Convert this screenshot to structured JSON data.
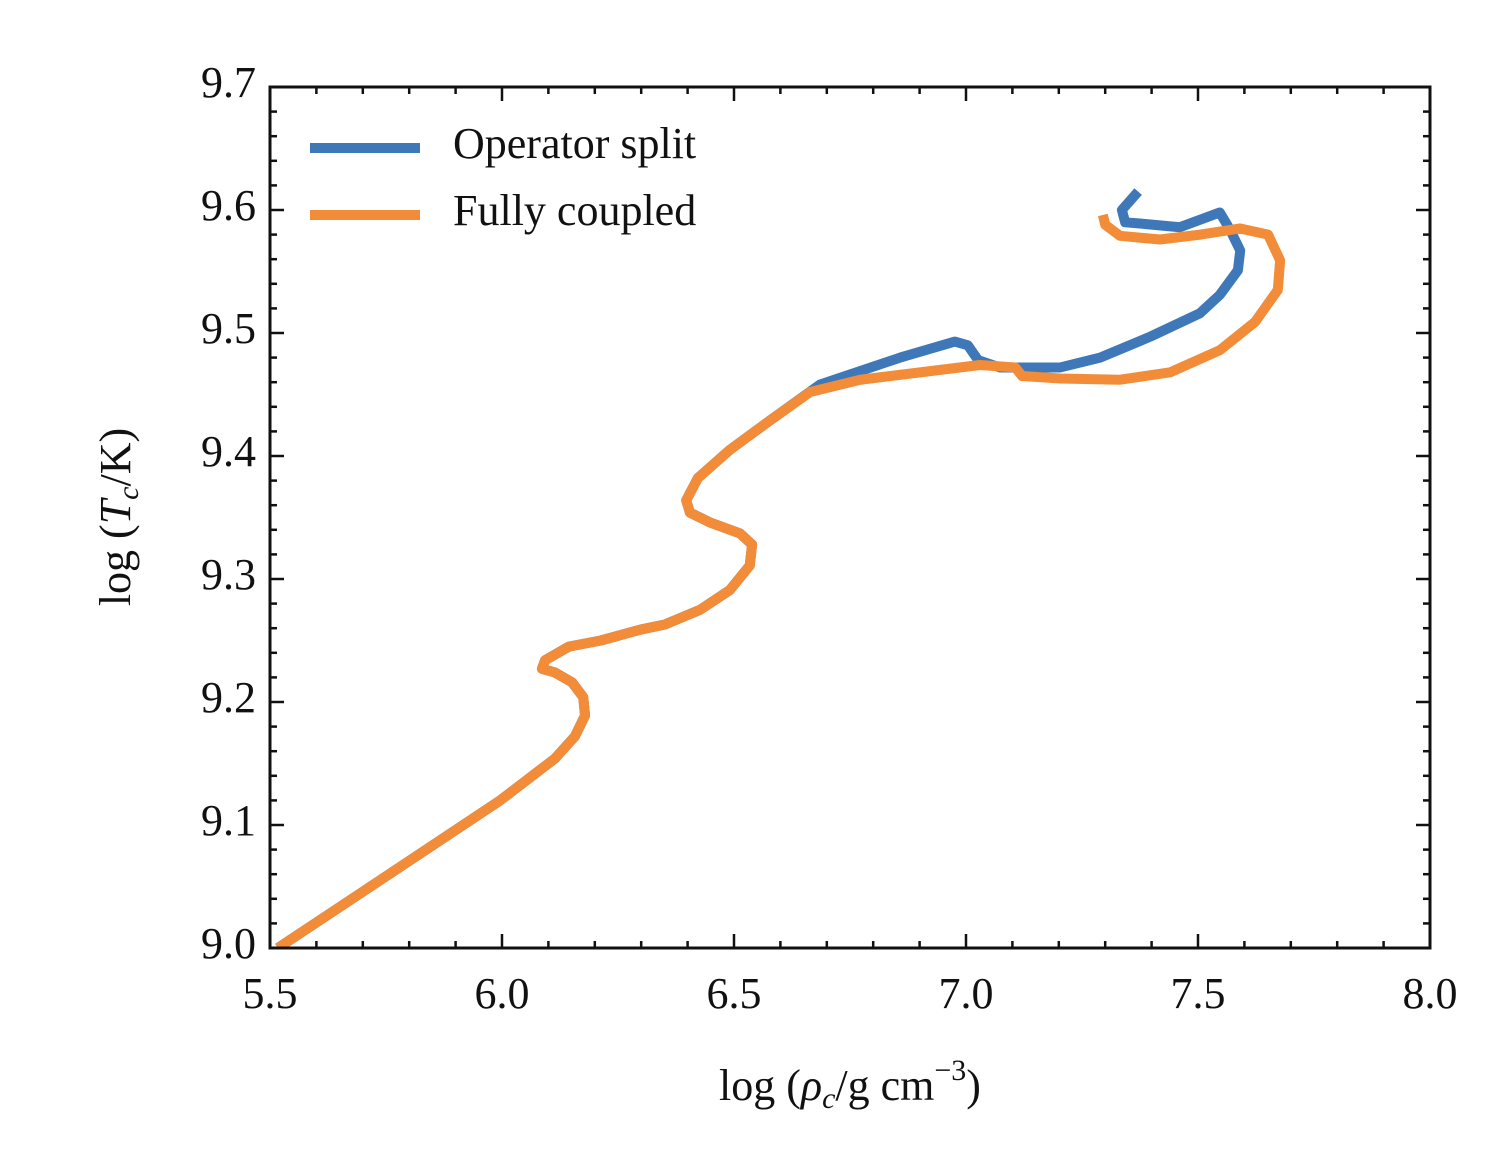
{
  "chart_data": {
    "type": "line",
    "xlabel": [
      "log (",
      "ρ",
      "c",
      "/g cm",
      "−3",
      ")"
    ],
    "ylabel": [
      "log (",
      "T",
      "c",
      "/K)"
    ],
    "xlim": [
      5.5,
      8.0
    ],
    "ylim": [
      9.0,
      9.7
    ],
    "xticks": [
      5.5,
      {
        "value": 6,
        "label": "6.0"
      },
      6.5,
      {
        "value": 7,
        "label": "7.0"
      },
      7.5,
      {
        "value": 8,
        "label": "8.0"
      }
    ],
    "yticks": [
      {
        "value": 9,
        "label": "9.0"
      },
      9.1,
      9.2,
      9.3,
      9.4,
      9.5,
      9.6,
      9.7
    ],
    "xminorticks": [
      5.6,
      5.7,
      5.8,
      5.9,
      6.1,
      6.2,
      6.3,
      6.4,
      6.6,
      6.7,
      6.8,
      6.9,
      7.1,
      7.2,
      7.3,
      7.4,
      7.6,
      7.7,
      7.8,
      7.9
    ],
    "yminorticks": [
      9.02,
      9.04,
      9.06,
      9.08,
      9.12,
      9.14,
      9.16,
      9.18,
      9.22,
      9.24,
      9.26,
      9.28,
      9.32,
      9.34,
      9.36,
      9.38,
      9.42,
      9.44,
      9.46,
      9.48,
      9.52,
      9.54,
      9.56,
      9.58,
      9.62,
      9.64,
      9.66,
      9.68
    ],
    "legend": "upper left",
    "series": [
      {
        "name": "Operator split",
        "color": "#3f78b9",
        "x": [
          5.517,
          5.737,
          5.996,
          6.114,
          6.157,
          6.179,
          6.175,
          6.151,
          6.114,
          6.086,
          6.093,
          6.144,
          6.213,
          6.3,
          6.351,
          6.427,
          6.491,
          6.534,
          6.539,
          6.513,
          6.448,
          6.405,
          6.397,
          6.422,
          6.491,
          6.578,
          6.685,
          6.858,
          6.976,
          7.004,
          7.026,
          7.073,
          7.203,
          7.289,
          7.397,
          7.504,
          7.547,
          7.586,
          7.591,
          7.569,
          7.547,
          7.461,
          7.375,
          7.343,
          7.336,
          7.371
        ],
        "values": [
          9.0,
          9.055,
          9.12,
          9.154,
          9.172,
          9.189,
          9.204,
          9.216,
          9.224,
          9.227,
          9.234,
          9.245,
          9.25,
          9.259,
          9.263,
          9.275,
          9.291,
          9.311,
          9.328,
          9.337,
          9.346,
          9.354,
          9.364,
          9.382,
          9.405,
          9.429,
          9.458,
          9.48,
          9.493,
          9.49,
          9.478,
          9.472,
          9.472,
          9.48,
          9.497,
          9.516,
          9.531,
          9.551,
          9.567,
          9.584,
          9.598,
          9.586,
          9.589,
          9.59,
          9.6,
          9.615
        ]
      },
      {
        "name": "Fully coupled",
        "color": "#f28c38",
        "x": [
          5.517,
          5.737,
          5.996,
          6.114,
          6.157,
          6.179,
          6.175,
          6.151,
          6.114,
          6.086,
          6.093,
          6.144,
          6.213,
          6.3,
          6.351,
          6.427,
          6.491,
          6.534,
          6.539,
          6.513,
          6.448,
          6.405,
          6.397,
          6.422,
          6.491,
          6.578,
          6.664,
          6.772,
          6.901,
          7.03,
          7.106,
          7.121,
          7.203,
          7.332,
          7.44,
          7.547,
          7.623,
          7.672,
          7.677,
          7.651,
          7.591,
          7.505,
          7.418,
          7.332,
          7.3,
          7.295
        ],
        "values": [
          9.0,
          9.055,
          9.12,
          9.154,
          9.172,
          9.189,
          9.204,
          9.216,
          9.224,
          9.227,
          9.234,
          9.245,
          9.25,
          9.259,
          9.263,
          9.275,
          9.291,
          9.311,
          9.328,
          9.337,
          9.346,
          9.354,
          9.364,
          9.382,
          9.405,
          9.429,
          9.452,
          9.462,
          9.468,
          9.474,
          9.472,
          9.465,
          9.463,
          9.462,
          9.468,
          9.486,
          9.509,
          9.535,
          9.559,
          9.58,
          9.585,
          9.58,
          9.576,
          9.579,
          9.588,
          9.596
        ]
      }
    ]
  }
}
